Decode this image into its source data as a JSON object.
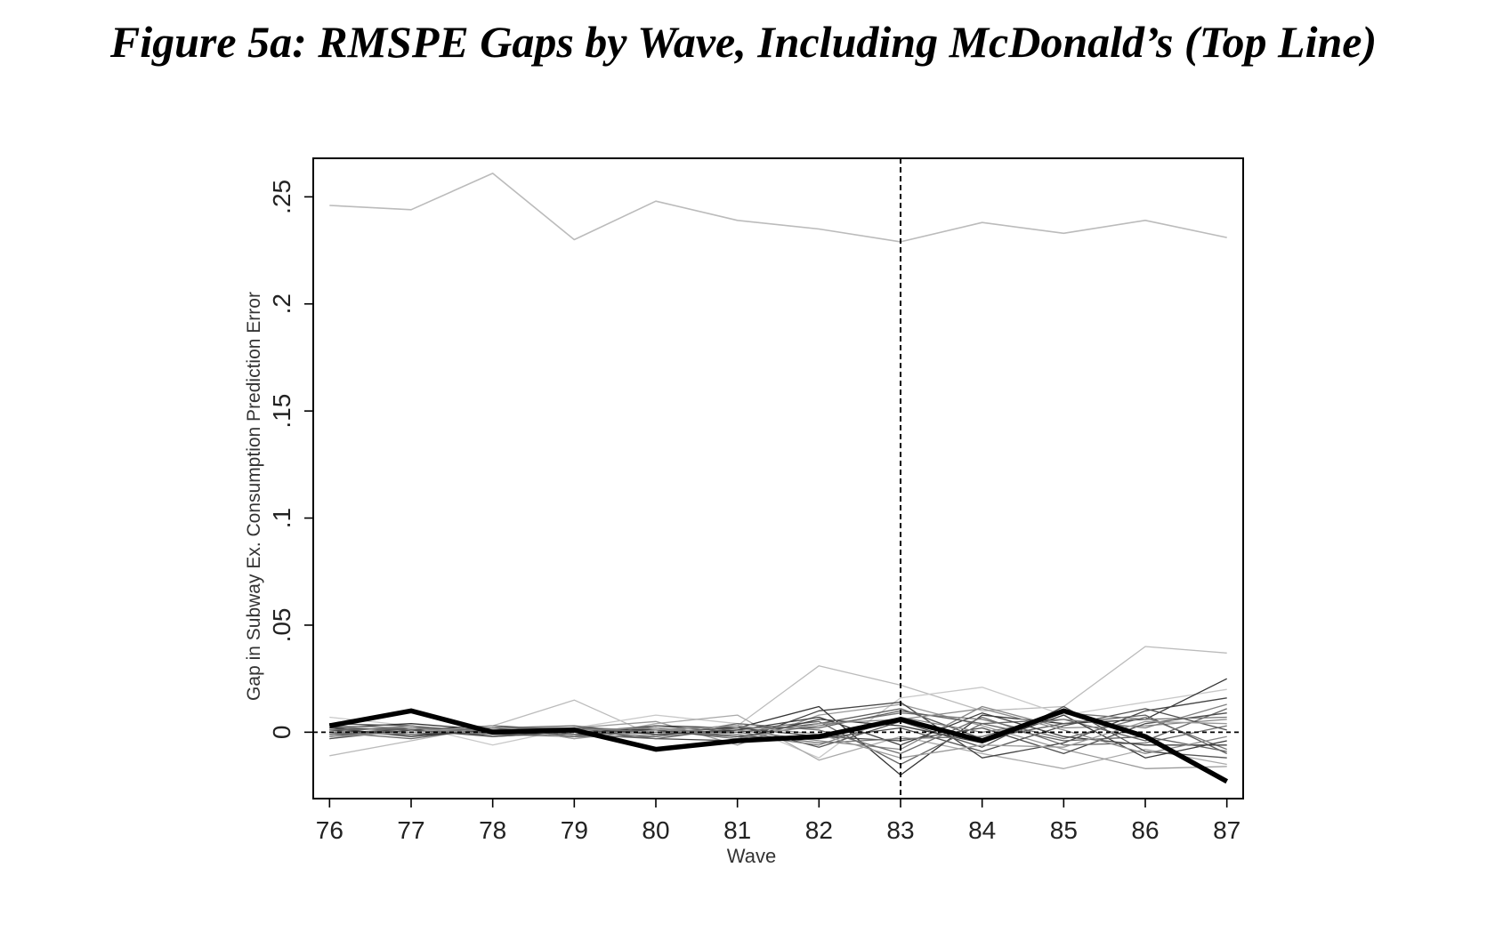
{
  "title": "Figure 5a: RMSPE Gaps by Wave, Including McDonald’s (Top Line)",
  "chart_data": {
    "type": "line",
    "title": "Figure 5a: RMSPE Gaps by Wave, Including McDonald’s (Top Line)",
    "xlabel": "Wave",
    "ylabel": "Gap in Subway Ex. Consumption Prediction Error",
    "x": [
      76,
      77,
      78,
      79,
      80,
      81,
      82,
      83,
      84,
      85,
      86,
      87
    ],
    "x_tick_labels": [
      "76",
      "77",
      "78",
      "79",
      "80",
      "81",
      "82",
      "83",
      "84",
      "85",
      "86",
      "87"
    ],
    "y_ticks": [
      0,
      0.05,
      0.1,
      0.15,
      0.2,
      0.25
    ],
    "y_tick_labels": [
      "0",
      ".05",
      ".1",
      ".15",
      ".2",
      ".25"
    ],
    "xlim": [
      75.8,
      87.2
    ],
    "ylim": [
      -0.031,
      0.268
    ],
    "vertical_line": {
      "x": 83,
      "style": "dashed"
    },
    "horizontal_line": {
      "y": 0,
      "style": "dashed"
    },
    "grid": false,
    "legend": "none",
    "series": [
      {
        "role": "top-line",
        "color": "#bbbbbb",
        "values": [
          0.246,
          0.244,
          0.261,
          0.23,
          0.248,
          0.239,
          0.235,
          0.229,
          0.238,
          0.233,
          0.239,
          0.231
        ]
      },
      {
        "role": "highlight",
        "color": "#000000",
        "values": [
          0.003,
          0.01,
          0.0,
          0.001,
          -0.008,
          -0.004,
          -0.002,
          0.006,
          -0.004,
          0.01,
          -0.002,
          -0.023
        ]
      },
      {
        "role": "placebo",
        "color": "#bbbbbb",
        "values": [
          -0.011,
          -0.004,
          0.003,
          0.015,
          -0.002,
          0.003,
          0.031,
          0.022,
          0.01,
          0.012,
          0.04,
          0.037
        ]
      },
      {
        "role": "placebo",
        "color": "#c8c8c8",
        "values": [
          0.007,
          0.003,
          -0.006,
          0.002,
          0.008,
          0.004,
          -0.012,
          0.016,
          0.021,
          0.008,
          0.014,
          0.02
        ]
      },
      {
        "role": "placebo",
        "color": "#aaaaaa",
        "values": [
          0.001,
          -0.002,
          0.003,
          -0.003,
          0.004,
          0.008,
          -0.013,
          -0.002,
          -0.01,
          -0.017,
          -0.008,
          -0.015
        ]
      },
      {
        "role": "placebo",
        "color": "#999999",
        "values": [
          -0.003,
          0.002,
          0.001,
          0.002,
          0.005,
          -0.006,
          0.008,
          0.013,
          0.003,
          -0.008,
          -0.017,
          -0.016
        ]
      },
      {
        "role": "placebo",
        "color": "#333333",
        "values": [
          0.002,
          0.004,
          0.001,
          -0.002,
          0.003,
          0.002,
          0.012,
          -0.02,
          0.008,
          0.004,
          0.006,
          0.025
        ]
      },
      {
        "role": "placebo",
        "color": "#444444",
        "values": [
          -0.002,
          0.001,
          0.003,
          0.001,
          -0.003,
          -0.004,
          0.01,
          0.014,
          -0.012,
          -0.005,
          0.01,
          0.016
        ]
      },
      {
        "role": "placebo",
        "color": "#555555",
        "values": [
          0.004,
          0.003,
          -0.002,
          0.0,
          0.001,
          0.003,
          -0.007,
          0.005,
          -0.007,
          0.012,
          -0.009,
          -0.012
        ]
      },
      {
        "role": "placebo",
        "color": "#666666",
        "values": [
          0.0,
          -0.003,
          0.002,
          0.003,
          -0.001,
          0.001,
          0.005,
          -0.015,
          0.004,
          0.006,
          -0.004,
          0.011
        ]
      },
      {
        "role": "placebo",
        "color": "#777777",
        "values": [
          -0.001,
          0.002,
          -0.001,
          -0.002,
          0.002,
          -0.002,
          0.003,
          0.009,
          0.006,
          -0.003,
          0.007,
          -0.008
        ]
      },
      {
        "role": "placebo",
        "color": "#888888",
        "values": [
          0.003,
          0.0,
          0.002,
          0.001,
          -0.002,
          0.001,
          -0.004,
          -0.008,
          0.012,
          0.002,
          0.003,
          0.006
        ]
      },
      {
        "role": "placebo",
        "color": "#3a3a3a",
        "values": [
          0.001,
          -0.001,
          0.0,
          0.002,
          0.001,
          -0.003,
          0.006,
          0.003,
          -0.005,
          0.008,
          -0.012,
          -0.004
        ]
      },
      {
        "role": "placebo",
        "color": "#4d4d4d",
        "values": [
          -0.002,
          0.002,
          0.001,
          -0.001,
          0.0,
          0.002,
          -0.002,
          -0.004,
          0.002,
          -0.01,
          0.004,
          0.009
        ]
      },
      {
        "role": "placebo",
        "color": "#5e5e5e",
        "values": [
          0.002,
          0.001,
          -0.001,
          0.0,
          0.003,
          0.0,
          0.004,
          0.011,
          -0.003,
          0.004,
          0.008,
          -0.01
        ]
      },
      {
        "role": "placebo",
        "color": "#6f6f6f",
        "values": [
          -0.001,
          0.0,
          0.002,
          -0.002,
          -0.002,
          0.004,
          0.001,
          -0.01,
          0.007,
          -0.006,
          -0.005,
          0.003
        ]
      },
      {
        "role": "placebo",
        "color": "#808080",
        "values": [
          0.0,
          0.003,
          0.0,
          0.001,
          0.002,
          -0.001,
          -0.006,
          0.007,
          0.0,
          0.006,
          0.002,
          0.013
        ]
      },
      {
        "role": "placebo",
        "color": "#404040",
        "values": [
          0.002,
          -0.002,
          0.001,
          0.002,
          -0.001,
          0.001,
          0.007,
          -0.006,
          0.009,
          -0.002,
          -0.006,
          -0.006
        ]
      },
      {
        "role": "placebo",
        "color": "#525252",
        "values": [
          -0.003,
          0.001,
          -0.002,
          0.0,
          0.001,
          -0.002,
          -0.003,
          0.002,
          -0.009,
          0.003,
          0.011,
          0.001
        ]
      },
      {
        "role": "placebo",
        "color": "#636363",
        "values": [
          0.001,
          0.002,
          0.001,
          -0.001,
          -0.003,
          0.002,
          0.002,
          0.01,
          0.004,
          -0.004,
          -0.002,
          -0.009
        ]
      },
      {
        "role": "placebo",
        "color": "#747474",
        "values": [
          0.0,
          -0.001,
          0.002,
          0.002,
          0.0,
          0.0,
          -0.005,
          -0.003,
          -0.002,
          0.009,
          0.006,
          0.007
        ]
      },
      {
        "role": "placebo",
        "color": "#8a8a8a",
        "values": [
          0.003,
          0.002,
          -0.001,
          0.001,
          0.002,
          -0.003,
          0.004,
          0.006,
          0.011,
          0.001,
          -0.01,
          -0.002
        ]
      },
      {
        "role": "placebo",
        "color": "#9a9a9a",
        "values": [
          -0.002,
          0.0,
          0.003,
          -0.003,
          0.001,
          0.003,
          -0.001,
          -0.012,
          -0.006,
          -0.007,
          0.005,
          0.004
        ]
      }
    ]
  }
}
